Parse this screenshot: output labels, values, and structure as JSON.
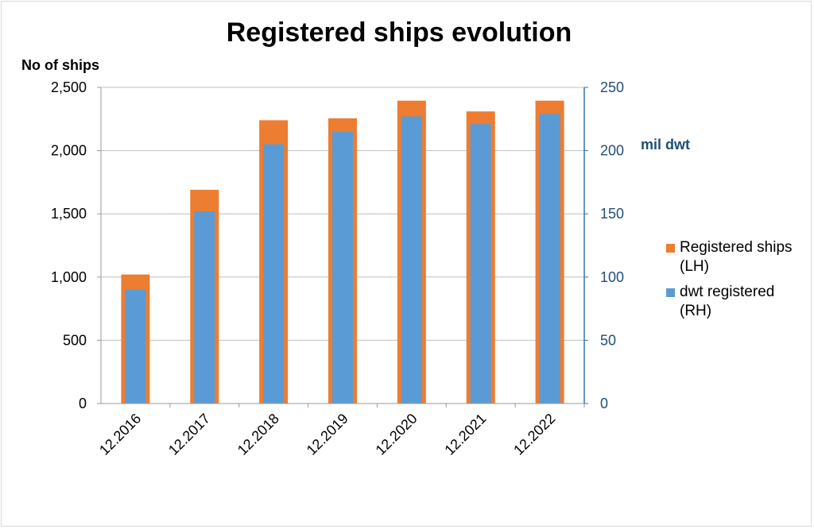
{
  "chart_data": {
    "type": "bar",
    "title": "Registered ships evolution",
    "ylabel_left": "No of ships",
    "ylabel_right": "mil dwt",
    "categories": [
      "12.2016",
      "12.2017",
      "12.2018",
      "12.2019",
      "12.2020",
      "12.2021",
      "12.2022"
    ],
    "series": [
      {
        "name": "Registered ships (LH)",
        "axis": "left",
        "color": "#ed7d31",
        "values": [
          1020,
          1690,
          2240,
          2255,
          2395,
          2310,
          2395
        ]
      },
      {
        "name": "dwt registered (RH)",
        "axis": "right",
        "color": "#5b9bd5",
        "values": [
          90,
          152,
          205,
          215,
          227,
          221,
          229
        ]
      }
    ],
    "ylim_left": [
      0,
      2500
    ],
    "yticks_left": [
      "0",
      "500",
      "1,000",
      "1,500",
      "2,000",
      "2,500"
    ],
    "ylim_right": [
      0,
      250
    ],
    "yticks_right": [
      "0",
      "50",
      "100",
      "150",
      "200",
      "250"
    ],
    "grid": true,
    "legend_position": "right"
  }
}
